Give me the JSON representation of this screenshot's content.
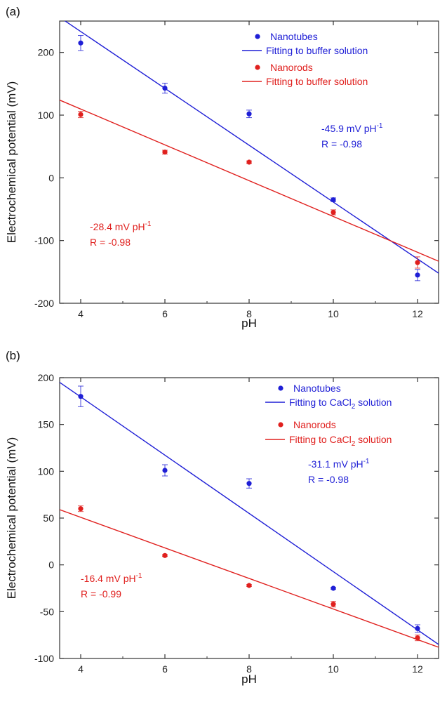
{
  "chart_data": [
    {
      "type": "scatter",
      "panel_label": "(a)",
      "xlabel": "pH",
      "ylabel": "Electrochemical potential (mV)",
      "xlim": [
        3.5,
        12.5
      ],
      "ylim": [
        -200,
        250
      ],
      "xticks": [
        4,
        6,
        8,
        10,
        12
      ],
      "yticks": [
        -200,
        -100,
        0,
        100,
        200
      ],
      "grid": false,
      "legend_position": "top-right",
      "series": [
        {
          "name": "Nanotubes",
          "color": "#1f1fd6",
          "x": [
            4,
            6,
            8,
            10,
            12
          ],
          "values": [
            215,
            143,
            102,
            -35,
            -155
          ],
          "errors": [
            12,
            8,
            6,
            3,
            9
          ],
          "fit_legend": "Fitting to buffer solution",
          "fit_line": [
            [
              3.5,
              256
            ],
            [
              12.5,
              -152
            ]
          ],
          "slope_label": "-45.9 mV pH",
          "slope_sup": "-1",
          "r_label": "R = -0.98"
        },
        {
          "name": "Nanorods",
          "color": "#e0201e",
          "x": [
            4,
            6,
            8,
            10,
            12
          ],
          "values": [
            101,
            41,
            25,
            -55,
            -135
          ],
          "errors": [
            5,
            3,
            2,
            4,
            9
          ],
          "fit_legend": "Fitting to buffer solution",
          "fit_line": [
            [
              3.5,
              124
            ],
            [
              12.5,
              -133
            ]
          ],
          "slope_label": "-28.4 mV pH",
          "slope_sup": "-1",
          "r_label": "R = -0.98"
        }
      ]
    },
    {
      "type": "scatter",
      "panel_label": "(b)",
      "xlabel": "pH",
      "ylabel": "Electrochemical potential (mV)",
      "xlim": [
        3.5,
        12.5
      ],
      "ylim": [
        -100,
        200
      ],
      "xticks": [
        4,
        6,
        8,
        10,
        12
      ],
      "yticks": [
        -100,
        -50,
        0,
        50,
        100,
        150,
        200
      ],
      "grid": false,
      "legend_position": "top-right",
      "series": [
        {
          "name": "Nanotubes",
          "color": "#1f1fd6",
          "x": [
            4,
            6,
            8,
            10,
            12
          ],
          "values": [
            180,
            101,
            87,
            -25,
            -68
          ],
          "errors": [
            11,
            6,
            5,
            1,
            4
          ],
          "fit_legend": "Fitting to CaCl",
          "fit_legend_sub": "2",
          "fit_legend_tail": " solution",
          "fit_line": [
            [
              3.5,
              195
            ],
            [
              12.5,
              -85
            ]
          ],
          "slope_label": "-31.1 mV pH",
          "slope_sup": "-1",
          "r_label": "R = -0.98"
        },
        {
          "name": "Nanorods",
          "color": "#e0201e",
          "x": [
            4,
            6,
            8,
            10,
            12
          ],
          "values": [
            60,
            10,
            -22,
            -42,
            -78
          ],
          "errors": [
            3,
            1,
            1,
            3,
            3
          ],
          "fit_legend": "Fitting to CaCl",
          "fit_legend_sub": "2",
          "fit_legend_tail": " solution",
          "fit_line": [
            [
              3.5,
              59
            ],
            [
              12.5,
              -88
            ]
          ],
          "slope_label": "-16.4 mV pH",
          "slope_sup": "-1",
          "r_label": "R = -0.99"
        }
      ]
    }
  ]
}
